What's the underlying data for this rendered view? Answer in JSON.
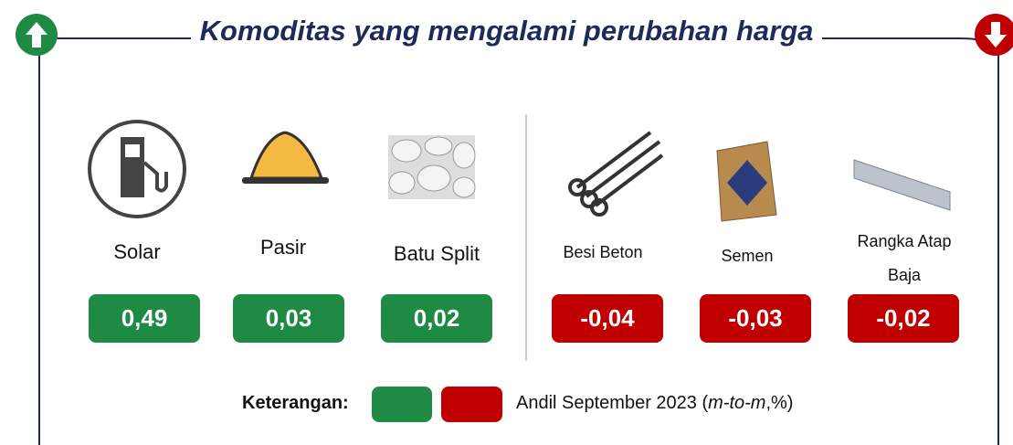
{
  "header": {
    "title": "Komoditas yang mengalami perubahan harga"
  },
  "increase": [
    {
      "label": "Solar",
      "value": "0,49"
    },
    {
      "label": "Pasir",
      "value": "0,03"
    },
    {
      "label": "Batu Split",
      "value": "0,02"
    }
  ],
  "decrease": [
    {
      "label": "Besi Beton",
      "value": "-0,04"
    },
    {
      "label": "Semen",
      "value": "-0,03"
    },
    {
      "label": "Rangka Atap Baja",
      "value": "-0,02"
    }
  ],
  "legend": {
    "label": "Keterangan:",
    "text": "Andil September 2023",
    "note": "m-to-m",
    "unit": ",%)"
  }
}
